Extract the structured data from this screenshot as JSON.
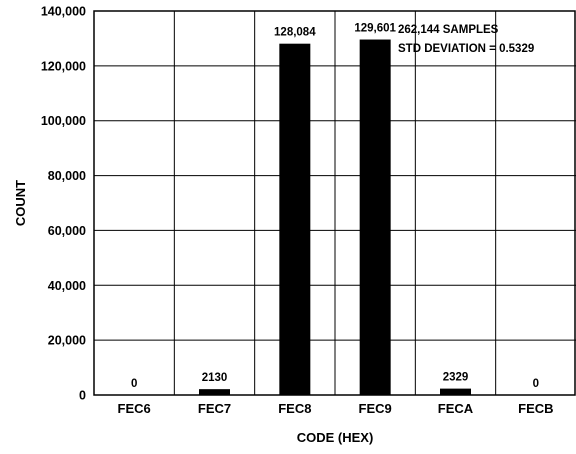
{
  "chart_data": {
    "type": "bar",
    "categories": [
      "FEC6",
      "FEC7",
      "FEC8",
      "FEC9",
      "FECA",
      "FECB"
    ],
    "values": [
      0,
      2130,
      128084,
      129601,
      2329,
      0
    ],
    "value_labels": [
      "0",
      "2130",
      "128,084",
      "129,601",
      "2329",
      "0"
    ],
    "xlabel": "CODE (HEX)",
    "ylabel": "COUNT",
    "ylim": [
      0,
      140000
    ],
    "yticks": [
      0,
      20000,
      40000,
      60000,
      80000,
      100000,
      120000,
      140000
    ],
    "ytick_labels": [
      "0",
      "20,000",
      "40,000",
      "60,000",
      "80,000",
      "100,000",
      "120,000",
      "140,000"
    ],
    "annotations": [
      "262,144 SAMPLES",
      "STD DEVIATION = 0.5329"
    ],
    "annotation_position": "top-right",
    "grid": true,
    "bar_color": "#000000"
  }
}
